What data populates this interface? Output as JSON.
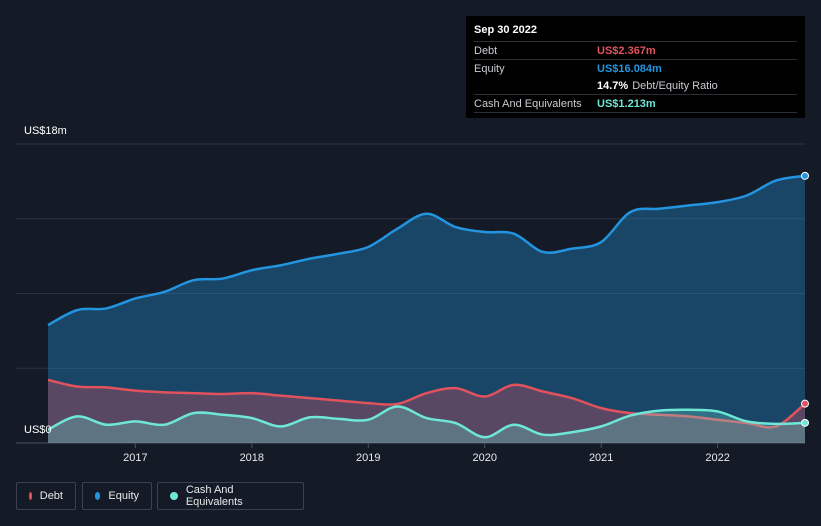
{
  "tooltip": {
    "date": "Sep 30 2022",
    "rows": {
      "debt": {
        "label": "Debt",
        "value": "US$2.367m"
      },
      "equity": {
        "label": "Equity",
        "value": "US$16.084m"
      },
      "ratio": {
        "value": "14.7%",
        "label": "Debt/Equity Ratio"
      },
      "cash": {
        "label": "Cash And Equivalents",
        "value": "US$1.213m"
      }
    }
  },
  "legend": {
    "debt": "Debt",
    "equity": "Equity",
    "cash": "Cash And Equivalents"
  },
  "colors": {
    "debt": "#e0525e",
    "equity": "#2394df",
    "cash": "#6ee7d6",
    "background": "#151b26"
  },
  "chart_data": {
    "type": "area",
    "ylim": [
      0,
      18
    ],
    "y_tick_labels": {
      "top": "US$18m",
      "bottom": "US$0"
    },
    "x_ticks": [
      2017,
      2018,
      2019,
      2020,
      2021,
      2022
    ],
    "x": [
      2016.25,
      2016.5,
      2016.75,
      2017.0,
      2017.25,
      2017.5,
      2017.75,
      2018.0,
      2018.25,
      2018.5,
      2018.75,
      2019.0,
      2019.25,
      2019.5,
      2019.75,
      2020.0,
      2020.25,
      2020.5,
      2020.75,
      2021.0,
      2021.25,
      2021.5,
      2021.75,
      2022.0,
      2022.25,
      2022.5,
      2022.75
    ],
    "series": [
      {
        "name": "Equity",
        "values": [
          7.1,
          8.0,
          8.1,
          8.7,
          9.1,
          9.8,
          9.9,
          10.4,
          10.7,
          11.1,
          11.4,
          11.8,
          12.9,
          13.8,
          13.0,
          12.7,
          12.6,
          11.5,
          11.7,
          12.1,
          13.9,
          14.1,
          14.3,
          14.5,
          14.9,
          15.8,
          16.084
        ]
      },
      {
        "name": "Debt",
        "values": [
          3.8,
          3.4,
          3.35,
          3.15,
          3.05,
          3.0,
          2.95,
          3.0,
          2.85,
          2.7,
          2.55,
          2.4,
          2.35,
          3.0,
          3.3,
          2.8,
          3.5,
          3.1,
          2.7,
          2.1,
          1.8,
          1.7,
          1.6,
          1.4,
          1.2,
          1.0,
          2.367
        ]
      },
      {
        "name": "Cash And Equivalents",
        "values": [
          0.8,
          1.6,
          1.1,
          1.3,
          1.1,
          1.8,
          1.7,
          1.5,
          1.0,
          1.55,
          1.45,
          1.4,
          2.2,
          1.5,
          1.2,
          0.35,
          1.1,
          0.5,
          0.65,
          1.0,
          1.65,
          1.95,
          2.0,
          1.9,
          1.3,
          1.15,
          1.213
        ]
      }
    ]
  }
}
